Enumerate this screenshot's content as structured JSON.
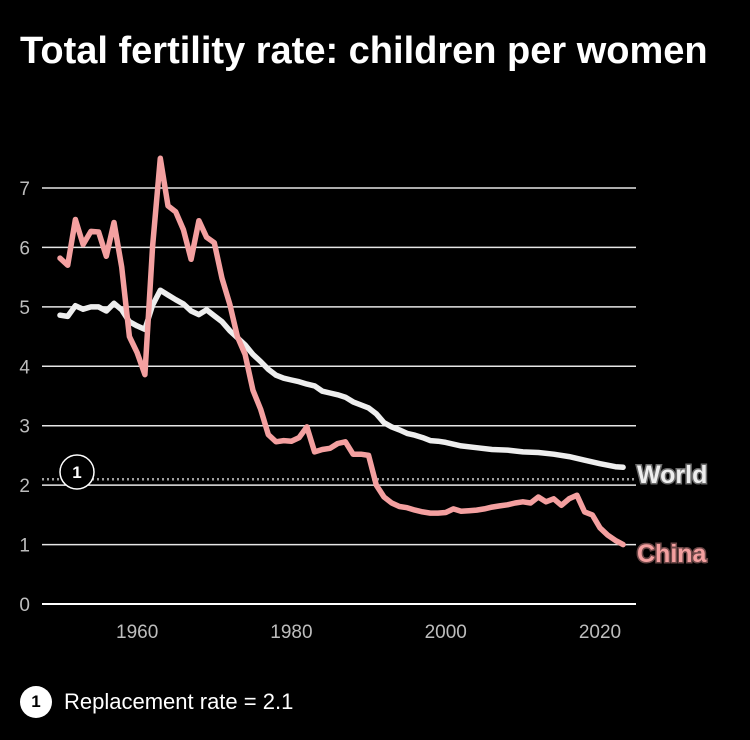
{
  "title": "Total fertility rate: children per women",
  "footnote": {
    "marker": "1",
    "text": "Replacement rate = 2.1"
  },
  "chart_data": {
    "type": "line",
    "xlim": [
      1946,
      2026
    ],
    "ylim": [
      0,
      7.3
    ],
    "x_ticks": [
      1960,
      1980,
      2000,
      2020
    ],
    "y_ticks": [
      0,
      1,
      2,
      3,
      4,
      5,
      6,
      7
    ],
    "grid": "horizontal",
    "colors": {
      "World": "#eeeeee",
      "China": "#f4a0a0",
      "grid": "#ffffff",
      "replacement": "#9e9e9e"
    },
    "reference_line": {
      "y": 2.1,
      "style": "dotted",
      "marker": "1"
    },
    "series": [
      {
        "name": "World",
        "color": "#eeeeee",
        "x": [
          1950,
          1951,
          1952,
          1953,
          1954,
          1955,
          1956,
          1957,
          1958,
          1959,
          1960,
          1961,
          1962,
          1963,
          1964,
          1965,
          1966,
          1967,
          1968,
          1969,
          1970,
          1971,
          1972,
          1973,
          1974,
          1975,
          1976,
          1977,
          1978,
          1979,
          1980,
          1981,
          1982,
          1983,
          1984,
          1985,
          1986,
          1987,
          1988,
          1989,
          1990,
          1991,
          1992,
          1993,
          1994,
          1995,
          1996,
          1997,
          1998,
          1999,
          2000,
          2002,
          2004,
          2006,
          2008,
          2010,
          2012,
          2014,
          2016,
          2018,
          2020,
          2022,
          2023
        ],
        "y": [
          4.86,
          4.84,
          5.02,
          4.96,
          5.0,
          5.0,
          4.93,
          5.06,
          4.95,
          4.75,
          4.68,
          4.62,
          5.03,
          5.28,
          5.2,
          5.12,
          5.05,
          4.93,
          4.87,
          4.95,
          4.85,
          4.75,
          4.6,
          4.48,
          4.36,
          4.2,
          4.08,
          3.95,
          3.85,
          3.8,
          3.77,
          3.74,
          3.7,
          3.67,
          3.58,
          3.55,
          3.52,
          3.48,
          3.4,
          3.35,
          3.3,
          3.2,
          3.05,
          2.98,
          2.93,
          2.87,
          2.84,
          2.8,
          2.75,
          2.74,
          2.72,
          2.66,
          2.63,
          2.6,
          2.59,
          2.56,
          2.55,
          2.52,
          2.48,
          2.42,
          2.36,
          2.31,
          2.3
        ]
      },
      {
        "name": "China",
        "color": "#f4a0a0",
        "x": [
          1950,
          1951,
          1952,
          1953,
          1954,
          1955,
          1956,
          1957,
          1958,
          1959,
          1960,
          1961,
          1962,
          1963,
          1964,
          1965,
          1966,
          1967,
          1968,
          1969,
          1970,
          1971,
          1972,
          1973,
          1974,
          1975,
          1976,
          1977,
          1978,
          1979,
          1980,
          1981,
          1982,
          1983,
          1984,
          1985,
          1986,
          1987,
          1988,
          1989,
          1990,
          1991,
          1992,
          1993,
          1994,
          1995,
          1996,
          1997,
          1998,
          1999,
          2000,
          2001,
          2002,
          2003,
          2004,
          2005,
          2006,
          2007,
          2008,
          2009,
          2010,
          2011,
          2012,
          2013,
          2014,
          2015,
          2016,
          2017,
          2018,
          2019,
          2020,
          2021,
          2022,
          2023
        ],
        "y": [
          5.82,
          5.7,
          6.47,
          6.05,
          6.27,
          6.26,
          5.85,
          6.42,
          5.67,
          4.5,
          4.23,
          3.86,
          6.02,
          7.5,
          6.7,
          6.6,
          6.3,
          5.8,
          6.45,
          6.17,
          6.08,
          5.48,
          5.05,
          4.5,
          4.2,
          3.6,
          3.28,
          2.85,
          2.73,
          2.75,
          2.74,
          2.8,
          2.98,
          2.56,
          2.6,
          2.62,
          2.7,
          2.73,
          2.52,
          2.52,
          2.5,
          2.0,
          1.8,
          1.7,
          1.64,
          1.62,
          1.58,
          1.55,
          1.53,
          1.53,
          1.54,
          1.6,
          1.56,
          1.57,
          1.58,
          1.6,
          1.63,
          1.65,
          1.67,
          1.7,
          1.72,
          1.7,
          1.8,
          1.72,
          1.77,
          1.66,
          1.77,
          1.83,
          1.55,
          1.5,
          1.28,
          1.16,
          1.07,
          1.0
        ]
      }
    ]
  }
}
